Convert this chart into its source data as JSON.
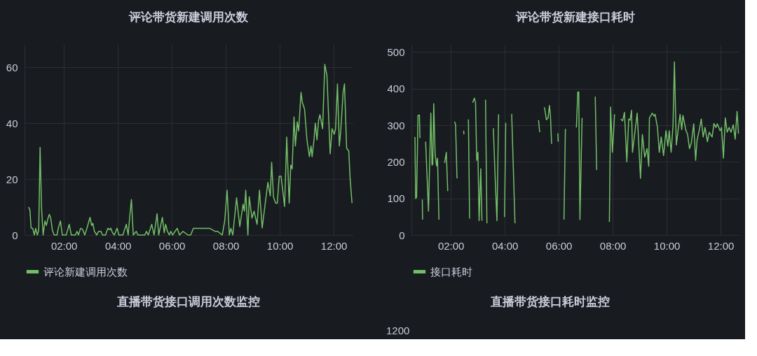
{
  "chart_data": [
    {
      "type": "line",
      "title": "评论带货新建调用次数",
      "xlim": [
        0.54,
        12.7
      ],
      "ylim": [
        0,
        68
      ],
      "yticks": [
        0,
        20,
        40,
        60
      ],
      "grid": true,
      "legend": "bottom left",
      "xticks": [
        {
          "value": 2,
          "label": "02:00"
        },
        {
          "value": 4,
          "label": "04:00"
        },
        {
          "value": 6,
          "label": "06:00"
        },
        {
          "value": 8,
          "label": "08:00"
        },
        {
          "value": 10,
          "label": "10:00"
        },
        {
          "value": 12,
          "label": "12:00"
        }
      ],
      "series": [
        {
          "name": "评论新建调用次数",
          "color": "#73bf69",
          "x": [
            0.689,
            0.74,
            0.783,
            0.843,
            0.903,
            0.955,
            1.015,
            1.066,
            1.117,
            1.169,
            1.229,
            1.297,
            1.349,
            1.409,
            1.46,
            1.512,
            1.572,
            1.64,
            1.743,
            1.794,
            1.871,
            1.94,
            2.086,
            2.197,
            2.274,
            2.428,
            2.488,
            2.54,
            2.617,
            2.686,
            2.771,
            2.857,
            2.968,
            3.028,
            3.071,
            3.131,
            3.217,
            3.285,
            3.371,
            3.431,
            3.542,
            3.628,
            3.688,
            3.74,
            3.8,
            3.868,
            3.971,
            4.039,
            4.185,
            4.314,
            4.382,
            4.442,
            4.502,
            4.571,
            4.682,
            4.742,
            4.999,
            5.059,
            5.128,
            5.256,
            5.342,
            5.453,
            5.513,
            5.65,
            5.719,
            5.77,
            5.839,
            5.907,
            5.959,
            6.027,
            6.199,
            6.285,
            6.413,
            6.6,
            6.7,
            6.8,
            7.14,
            7.4,
            7.61,
            7.7,
            7.87,
            7.96,
            8.05,
            8.13,
            8.19,
            8.26,
            8.4,
            8.52,
            8.64,
            8.69,
            8.74,
            8.82,
            8.87,
            8.97,
            9.05,
            9.16,
            9.25,
            9.35,
            9.42,
            9.56,
            9.65,
            9.7,
            9.77,
            9.85,
            9.91,
            9.98,
            10.05,
            10.18,
            10.26,
            10.35,
            10.41,
            10.46,
            10.53,
            10.58,
            10.65,
            10.7,
            10.79,
            10.84,
            10.92,
            11.01,
            11.1,
            11.16,
            11.2,
            11.27,
            11.32,
            11.38,
            11.44,
            11.49,
            11.59,
            11.67,
            11.75,
            11.87,
            11.94,
            12.02,
            12.07,
            12.14,
            12.21,
            12.26,
            12.35,
            12.4,
            12.48,
            12.56,
            12.61,
            12.68
          ],
          "values": [
            10,
            8.9,
            2.5,
            2.4,
            0,
            2.4,
            0,
            1.7,
            31.3,
            10,
            0,
            5,
            3.4,
            5.9,
            7.4,
            6,
            1.7,
            0,
            0,
            2.5,
            5,
            0,
            0,
            3.8,
            0,
            0,
            1.3,
            0,
            2.4,
            2.1,
            0,
            2.5,
            6.3,
            3.4,
            4.2,
            1.3,
            0,
            1.3,
            1.3,
            0,
            0,
            2.4,
            1.9,
            2.4,
            0.8,
            0,
            2.4,
            0,
            0,
            3.8,
            0,
            6.8,
            12.7,
            0,
            1.3,
            0,
            0,
            1.3,
            0,
            3.8,
            0,
            7.6,
            0,
            6.3,
            0.8,
            3.8,
            1.3,
            0,
            1.3,
            0,
            2.4,
            0,
            1.3,
            0,
            0,
            2.4,
            2.4,
            2.4,
            1.3,
            1.3,
            0,
            5,
            16,
            0,
            2.4,
            0,
            13.3,
            3,
            11,
            8.5,
            16,
            0,
            13.7,
            6,
            8.5,
            3.8,
            16,
            2.5,
            8,
            18.8,
            14,
            26,
            13.5,
            11.4,
            11.4,
            21,
            21,
            10.2,
            35,
            11.4,
            25,
            23.6,
            42.2,
            31.8,
            40.5,
            37.2,
            51,
            47.3,
            45,
            34,
            28,
            31.8,
            28,
            34,
            40,
            34,
            41,
            43,
            38,
            61,
            57,
            29,
            38,
            36,
            38,
            54,
            31.8,
            37,
            51,
            54,
            31,
            30,
            20,
            11.4
          ]
        }
      ]
    },
    {
      "type": "line",
      "title": "评论带货新建接口耗时",
      "xlim": [
        0.54,
        12.7
      ],
      "ylim": [
        0,
        520
      ],
      "yticks": [
        0,
        100,
        200,
        300,
        400,
        500
      ],
      "grid": true,
      "legend": "bottom left",
      "xticks": [
        {
          "value": 2,
          "label": "02:00"
        },
        {
          "value": 4,
          "label": "04:00"
        },
        {
          "value": 6,
          "label": "06:00"
        },
        {
          "value": 8,
          "label": "08:00"
        },
        {
          "value": 10,
          "label": "10:00"
        },
        {
          "value": 12,
          "label": "12:00"
        }
      ],
      "series": [
        {
          "name": "接口耗时",
          "color": "#73bf69",
          "x": [
            0.67,
            0.696,
            0.731,
            0.784,
            0.837,
            0.855,
            0.9,
            0.943,
            0.952,
            1.0,
            1.066,
            1.172,
            1.26,
            1.304,
            1.33,
            1.366,
            1.419,
            1.471,
            1.507,
            1.559,
            1.65,
            1.771,
            1.833,
            1.885,
            2.0,
            2.141,
            2.176,
            2.229,
            2.35,
            2.476,
            2.485,
            2.55,
            2.652,
            2.696,
            2.75,
            2.811,
            2.872,
            2.916,
            2.96,
            3.004,
            3.048,
            3.11,
            3.154,
            3.2,
            3.286,
            3.339,
            3.45,
            3.577,
            3.639,
            3.709,
            3.771,
            3.85,
            3.991,
            4.035,
            4.1,
            4.256,
            4.379,
            4.45,
            5.251,
            5.295,
            5.4,
            5.471,
            5.542,
            5.604,
            5.656,
            5.692,
            5.736,
            5.78,
            5.965,
            5.982,
            6.1,
            6.194,
            6.247,
            6.4,
            6.655,
            6.707,
            6.742,
            6.786,
            6.865,
            7.0,
            7.354,
            7.406,
            7.6,
            7.878,
            7.921,
            7.991,
            8.07,
            8.15,
            8.297,
            8.367,
            8.437,
            8.524,
            8.594,
            8.646,
            8.699,
            8.734,
            8.838,
            8.908,
            9.031,
            9.1,
            9.188,
            9.275,
            9.336,
            9.362,
            9.467,
            9.537,
            9.572,
            9.659,
            9.729,
            9.799,
            9.886,
            9.974,
            10.044,
            10.096,
            10.166,
            10.236,
            10.288,
            10.358,
            10.428,
            10.498,
            10.559,
            10.603,
            10.707,
            10.777,
            10.847,
            10.917,
            11.004,
            11.074,
            11.127,
            11.214,
            11.284,
            11.354,
            11.424,
            11.511,
            11.581,
            11.686,
            11.755,
            11.825,
            11.878,
            11.983,
            12.035,
            12.105,
            12.175,
            12.245,
            12.314,
            12.384,
            12.472,
            12.541,
            12.611,
            12.664
          ],
          "values": [
            268,
            100,
            103,
            327,
            328,
            265,
            null,
            97,
            42,
            null,
            255,
            65,
            333,
            191,
            194,
            359,
            220,
            189,
            210,
            42,
            null,
            197,
            226,
            120,
            null,
            310,
            301,
            155,
            null,
            285,
            275,
            null,
            316,
            45,
            null,
            362,
            374,
            362,
            204,
            226,
            39,
            181,
            39,
            null,
            370,
            32,
            null,
            292,
            165,
            39,
            330,
            null,
            49,
            307,
            null,
            331,
            32,
            null,
            314,
            281,
            null,
            349,
            315,
            320,
            354,
            327,
            249,
            null,
            278,
            255,
            null,
            42,
            290,
            null,
            294,
            391,
            391,
            42,
            320,
            null,
            378,
            178,
            null,
            36,
            350,
            226,
            330,
            null,
            317,
            312,
            335,
            200,
            317,
            314,
            341,
            226,
            290,
            333,
            155,
            275,
            213,
            236,
            188,
            320,
            333,
            325,
            330,
            294,
            226,
            268,
            217,
            285,
            243,
            285,
            226,
            298,
            473,
            246,
            288,
            330,
            288,
            327,
            288,
            275,
            236,
            252,
            304,
            204,
            259,
            288,
            317,
            268,
            294,
            255,
            281,
            268,
            305,
            294,
            304,
            285,
            294,
            210,
            320,
            281,
            294,
            281,
            301,
            262,
            338,
            277
          ]
        }
      ]
    },
    {
      "type": "other",
      "title": "直播带货接口调用次数监控"
    },
    {
      "type": "other",
      "title": "直播带货接口耗时监控",
      "annotations": [
        "1200"
      ]
    }
  ]
}
